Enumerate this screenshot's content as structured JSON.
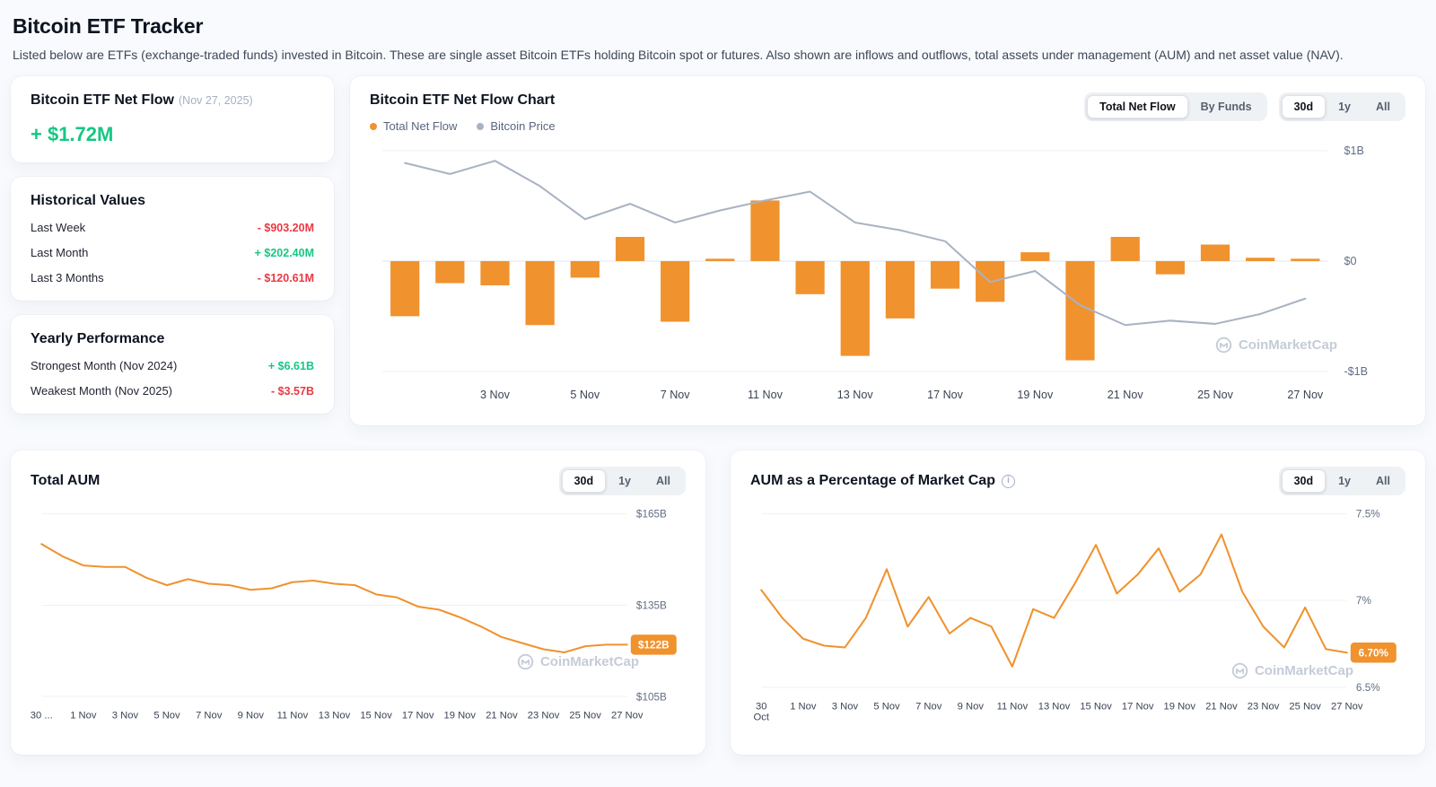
{
  "page": {
    "title": "Bitcoin ETF Tracker",
    "subtitle": "Listed below are ETFs (exchange-traded funds) invested in Bitcoin. These are single asset Bitcoin ETFs holding Bitcoin spot or futures. Also shown are inflows and outflows, total assets under management (AUM) and net asset value (NAV)."
  },
  "colors": {
    "positive": "#16c784",
    "negative": "#ea3943",
    "orange": "#f0922e",
    "price_line": "#a9b2c3",
    "grid": "#eef1f6",
    "badge_text": "#ffffff"
  },
  "net_flow_card": {
    "title": "Bitcoin ETF Net Flow",
    "date_note": "(Nov 27, 2025)",
    "value": "+ $1.72M"
  },
  "historical_card": {
    "title": "Historical Values",
    "rows": [
      {
        "label": "Last Week",
        "value": "- $903.20M",
        "direction": "negative"
      },
      {
        "label": "Last Month",
        "value": "+ $202.40M",
        "direction": "positive"
      },
      {
        "label": "Last 3 Months",
        "value": "- $120.61M",
        "direction": "negative"
      }
    ]
  },
  "yearly_card": {
    "title": "Yearly Performance",
    "rows": [
      {
        "label": "Strongest Month (Nov 2024)",
        "value": "+ $6.61B",
        "direction": "positive"
      },
      {
        "label": "Weakest Month (Nov 2025)",
        "value": "- $3.57B",
        "direction": "negative"
      }
    ]
  },
  "flow_chart": {
    "title": "Bitcoin ETF Net Flow Chart",
    "legend": [
      {
        "label": "Total Net Flow",
        "color": "#f0922e"
      },
      {
        "label": "Bitcoin Price",
        "color": "#a9b2c3"
      }
    ],
    "mode_toggle": [
      "Total Net Flow",
      "By Funds"
    ],
    "mode_active": "Total Net Flow",
    "range_toggle": [
      "30d",
      "1y",
      "All"
    ],
    "range_active": "30d",
    "watermark": "CoinMarketCap"
  },
  "aum_chart": {
    "title": "Total AUM",
    "range_toggle": [
      "30d",
      "1y",
      "All"
    ],
    "range_active": "30d",
    "watermark": "CoinMarketCap"
  },
  "pct_chart": {
    "title": "AUM as a Percentage of Market Cap",
    "info_icon_glyph": "i",
    "range_toggle": [
      "30d",
      "1y",
      "All"
    ],
    "range_active": "30d",
    "watermark": "CoinMarketCap"
  },
  "chart_data": [
    {
      "id": "net_flow",
      "type": "bar",
      "title": "Bitcoin ETF Net Flow Chart",
      "unit": "$B",
      "ylim": [
        -1,
        1
      ],
      "grid": "horizontal",
      "legend_position": "top-left",
      "yticks": [
        {
          "value": 1,
          "label": "$1B"
        },
        {
          "value": 0,
          "label": "$0"
        },
        {
          "value": -1,
          "label": "-$1B"
        }
      ],
      "categories": [
        "30 Oct",
        "31 Oct",
        "3 Nov",
        "4 Nov",
        "5 Nov",
        "6 Nov",
        "7 Nov",
        "10 Nov",
        "11 Nov",
        "12 Nov",
        "13 Nov",
        "14 Nov",
        "17 Nov",
        "18 Nov",
        "19 Nov",
        "20 Nov",
        "21 Nov",
        "24 Nov",
        "25 Nov",
        "26 Nov",
        "27 Nov"
      ],
      "series": [
        {
          "name": "Total Net Flow",
          "type": "bar",
          "color": "#f0922e",
          "unit": "$B",
          "values": [
            -0.5,
            -0.2,
            -0.22,
            -0.58,
            -0.15,
            0.22,
            -0.55,
            0.02,
            0.55,
            -0.3,
            -0.86,
            -0.52,
            -0.25,
            -0.37,
            0.08,
            -0.9,
            0.22,
            -0.12,
            0.15,
            0.03,
            0.0017
          ]
        },
        {
          "name": "Bitcoin Price",
          "type": "line",
          "color": "#a9b2c3",
          "unit": "normalized to flow axis (no price scale shown on chart)",
          "values": [
            0.89,
            0.79,
            0.91,
            0.68,
            0.38,
            0.52,
            0.35,
            0.46,
            0.55,
            0.63,
            0.35,
            0.28,
            0.18,
            -0.19,
            -0.09,
            -0.4,
            -0.58,
            -0.54,
            -0.57,
            -0.48,
            -0.34
          ]
        }
      ],
      "x_labels": [
        {
          "index": 2,
          "label": "3 Nov"
        },
        {
          "index": 4,
          "label": "5 Nov"
        },
        {
          "index": 6,
          "label": "7 Nov"
        },
        {
          "index": 8,
          "label": "11 Nov"
        },
        {
          "index": 10,
          "label": "13 Nov"
        },
        {
          "index": 12,
          "label": "17 Nov"
        },
        {
          "index": 14,
          "label": "19 Nov"
        },
        {
          "index": 16,
          "label": "21 Nov"
        },
        {
          "index": 18,
          "label": "25 Nov"
        },
        {
          "index": 20,
          "label": "27 Nov"
        }
      ]
    },
    {
      "id": "total_aum",
      "type": "line",
      "title": "Total AUM",
      "unit": "$B",
      "ylim": [
        105,
        165
      ],
      "grid": "horizontal",
      "yticks": [
        {
          "value": 165,
          "label": "$165B"
        },
        {
          "value": 135,
          "label": "$135B"
        },
        {
          "value": 105,
          "label": "$105B"
        }
      ],
      "categories": [
        "30 Oct",
        "31 Oct",
        "1 Nov",
        "2 Nov",
        "3 Nov",
        "4 Nov",
        "5 Nov",
        "6 Nov",
        "7 Nov",
        "8 Nov",
        "9 Nov",
        "10 Nov",
        "11 Nov",
        "12 Nov",
        "13 Nov",
        "14 Nov",
        "15 Nov",
        "16 Nov",
        "17 Nov",
        "18 Nov",
        "19 Nov",
        "20 Nov",
        "21 Nov",
        "22 Nov",
        "23 Nov",
        "24 Nov",
        "25 Nov",
        "26 Nov",
        "27 Nov"
      ],
      "values": [
        155,
        151,
        148,
        147.5,
        147.5,
        144,
        141.5,
        143.5,
        142,
        141.5,
        140,
        140.5,
        142.5,
        143,
        142,
        141.5,
        138.5,
        137.5,
        134.5,
        133.5,
        131,
        128,
        124.5,
        122.5,
        120.5,
        119.5,
        121.5,
        122,
        122
      ],
      "end_badge": "$122B",
      "x_labels": [
        {
          "index": 0,
          "label": "30 ..."
        },
        {
          "index": 2,
          "label": "1 Nov"
        },
        {
          "index": 4,
          "label": "3 Nov"
        },
        {
          "index": 6,
          "label": "5 Nov"
        },
        {
          "index": 8,
          "label": "7 Nov"
        },
        {
          "index": 10,
          "label": "9 Nov"
        },
        {
          "index": 12,
          "label": "11 Nov"
        },
        {
          "index": 14,
          "label": "13 Nov"
        },
        {
          "index": 16,
          "label": "15 Nov"
        },
        {
          "index": 18,
          "label": "17 Nov"
        },
        {
          "index": 20,
          "label": "19 Nov"
        },
        {
          "index": 22,
          "label": "21 Nov"
        },
        {
          "index": 24,
          "label": "23 Nov"
        },
        {
          "index": 26,
          "label": "25 Nov"
        },
        {
          "index": 28,
          "label": "27 Nov"
        }
      ]
    },
    {
      "id": "aum_pct",
      "type": "line",
      "title": "AUM as a Percentage of Market Cap",
      "unit": "%",
      "ylim": [
        6.5,
        7.5
      ],
      "grid": "horizontal",
      "yticks": [
        {
          "value": 7.5,
          "label": "7.5%"
        },
        {
          "value": 7.0,
          "label": "7%"
        },
        {
          "value": 6.5,
          "label": "6.5%"
        }
      ],
      "categories": [
        "30 Oct",
        "31 Oct",
        "1 Nov",
        "2 Nov",
        "3 Nov",
        "4 Nov",
        "5 Nov",
        "6 Nov",
        "7 Nov",
        "8 Nov",
        "9 Nov",
        "10 Nov",
        "11 Nov",
        "12 Nov",
        "13 Nov",
        "14 Nov",
        "15 Nov",
        "16 Nov",
        "17 Nov",
        "18 Nov",
        "19 Nov",
        "20 Nov",
        "21 Nov",
        "22 Nov",
        "23 Nov",
        "24 Nov",
        "25 Nov",
        "26 Nov",
        "27 Nov"
      ],
      "values": [
        7.06,
        6.9,
        6.78,
        6.74,
        6.73,
        6.9,
        7.18,
        6.85,
        7.02,
        6.81,
        6.9,
        6.85,
        6.62,
        6.95,
        6.9,
        7.1,
        7.32,
        7.04,
        7.15,
        7.3,
        7.05,
        7.15,
        7.38,
        7.05,
        6.85,
        6.73,
        6.96,
        6.72,
        6.7
      ],
      "end_badge": "6.70%",
      "x_labels": [
        {
          "index": 0,
          "label": "30\nOct"
        },
        {
          "index": 2,
          "label": "1 Nov"
        },
        {
          "index": 4,
          "label": "3 Nov"
        },
        {
          "index": 6,
          "label": "5 Nov"
        },
        {
          "index": 8,
          "label": "7 Nov"
        },
        {
          "index": 10,
          "label": "9 Nov"
        },
        {
          "index": 12,
          "label": "11 Nov"
        },
        {
          "index": 14,
          "label": "13 Nov"
        },
        {
          "index": 16,
          "label": "15 Nov"
        },
        {
          "index": 18,
          "label": "17 Nov"
        },
        {
          "index": 20,
          "label": "19 Nov"
        },
        {
          "index": 22,
          "label": "21 Nov"
        },
        {
          "index": 24,
          "label": "23 Nov"
        },
        {
          "index": 26,
          "label": "25 Nov"
        },
        {
          "index": 28,
          "label": "27 Nov"
        }
      ]
    }
  ]
}
